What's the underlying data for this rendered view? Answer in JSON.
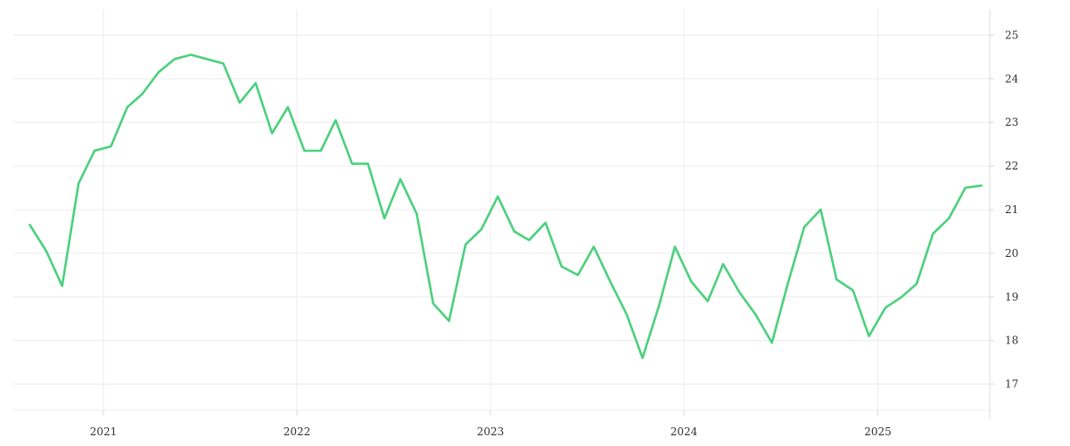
{
  "chart_data": {
    "type": "line",
    "title": "",
    "xlabel": "",
    "ylabel": "",
    "x_tick_labels": [
      "2021",
      "2022",
      "2023",
      "2024",
      "2025"
    ],
    "y_tick_labels": [
      "17",
      "18",
      "19",
      "20",
      "21",
      "22",
      "23",
      "24",
      "25"
    ],
    "y_ticks": [
      17,
      18,
      19,
      20,
      21,
      22,
      23,
      24,
      25
    ],
    "x_range": [
      "2020-07-15",
      "2025-07-31"
    ],
    "ylim": [
      16.4,
      25.6
    ],
    "y_axis_position": "right",
    "grid": true,
    "legend": "none",
    "colors": {
      "line": "#4cd07d",
      "grid": "#ececec"
    },
    "series": [
      {
        "x": [
          "2020-08",
          "2020-09",
          "2020-10",
          "2020-11",
          "2020-12",
          "2021-01",
          "2021-02",
          "2021-03",
          "2021-04",
          "2021-05",
          "2021-06",
          "2021-07",
          "2021-08",
          "2021-09",
          "2021-10",
          "2021-11",
          "2021-12",
          "2022-01",
          "2022-02",
          "2022-03",
          "2022-04",
          "2022-05",
          "2022-06",
          "2022-07",
          "2022-08",
          "2022-09",
          "2022-10",
          "2022-11",
          "2022-12",
          "2023-01",
          "2023-02",
          "2023-03",
          "2023-04",
          "2023-05",
          "2023-06",
          "2023-07",
          "2023-08",
          "2023-09",
          "2023-10",
          "2023-11",
          "2023-12",
          "2024-01",
          "2024-02",
          "2024-03",
          "2024-04",
          "2024-05",
          "2024-06",
          "2024-07",
          "2024-08",
          "2024-09",
          "2024-10",
          "2024-11",
          "2024-12",
          "2025-01",
          "2025-02",
          "2025-03",
          "2025-04",
          "2025-05",
          "2025-06",
          "2025-07"
        ],
        "values": [
          20.65,
          20.05,
          19.25,
          21.6,
          22.35,
          22.45,
          23.35,
          23.65,
          24.15,
          24.45,
          24.55,
          24.45,
          24.35,
          23.45,
          23.9,
          22.75,
          23.35,
          22.35,
          22.35,
          23.05,
          22.05,
          22.05,
          20.8,
          21.7,
          20.9,
          18.85,
          18.45,
          20.2,
          20.55,
          21.3,
          20.5,
          20.3,
          20.7,
          19.7,
          19.5,
          20.15,
          19.35,
          18.6,
          17.6,
          18.8,
          20.15,
          19.35,
          18.9,
          19.75,
          19.1,
          18.6,
          17.95,
          19.3,
          20.6,
          21.0,
          19.4,
          19.15,
          18.1,
          18.75,
          19.0,
          19.3,
          20.45,
          20.8,
          21.5,
          21.55
        ]
      }
    ]
  }
}
